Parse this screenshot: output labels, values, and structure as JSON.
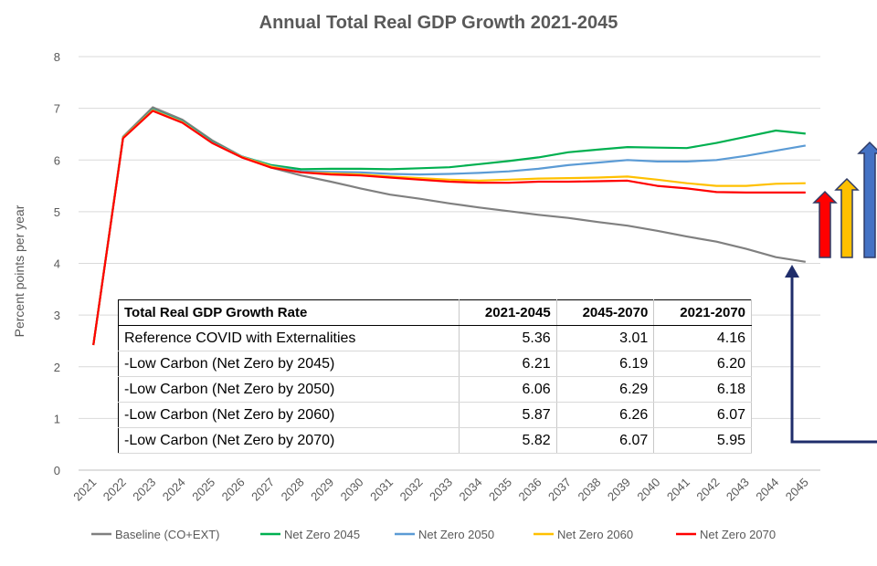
{
  "chart_data": {
    "type": "line",
    "title": "Annual Total Real GDP Growth 2021-2045",
    "ylabel": "Percent points per year",
    "xlabel": "",
    "ylim": [
      0,
      8
    ],
    "yticks": [
      0,
      1,
      2,
      3,
      4,
      5,
      6,
      7,
      8
    ],
    "grid": true,
    "legend_position": "bottom",
    "x": [
      "2021",
      "2022",
      "2023",
      "2024",
      "2025",
      "2026",
      "2027",
      "2028",
      "2029",
      "2030",
      "2031",
      "2032",
      "2033",
      "2034",
      "2035",
      "2036",
      "2037",
      "2038",
      "2039",
      "2040",
      "2041",
      "2042",
      "2043",
      "2044",
      "2045"
    ],
    "series": [
      {
        "name": "Baseline (CO+EXT)",
        "color": "#808080",
        "values": [
          2.42,
          6.45,
          7.02,
          6.78,
          6.38,
          6.07,
          5.85,
          5.7,
          5.58,
          5.45,
          5.33,
          5.25,
          5.16,
          5.08,
          5.01,
          4.94,
          4.88,
          4.8,
          4.73,
          4.63,
          4.52,
          4.42,
          4.28,
          4.12,
          4.03
        ]
      },
      {
        "name": "Net Zero 2045",
        "color": "#00B050",
        "values": [
          2.42,
          6.43,
          6.98,
          6.75,
          6.35,
          6.07,
          5.9,
          5.82,
          5.83,
          5.83,
          5.82,
          5.84,
          5.86,
          5.92,
          5.98,
          6.05,
          6.15,
          6.2,
          6.25,
          6.24,
          6.23,
          6.33,
          6.45,
          6.57,
          6.51
        ]
      },
      {
        "name": "Net Zero 2050",
        "color": "#5B9BD5",
        "values": [
          2.42,
          6.43,
          6.97,
          6.74,
          6.34,
          6.07,
          5.88,
          5.78,
          5.77,
          5.76,
          5.73,
          5.72,
          5.73,
          5.75,
          5.78,
          5.83,
          5.9,
          5.95,
          6.0,
          5.97,
          5.97,
          6.0,
          6.08,
          6.18,
          6.28
        ]
      },
      {
        "name": "Net Zero 2060",
        "color": "#FFC000",
        "values": [
          2.42,
          6.43,
          6.96,
          6.73,
          6.33,
          6.06,
          5.87,
          5.76,
          5.74,
          5.72,
          5.68,
          5.65,
          5.62,
          5.6,
          5.62,
          5.64,
          5.65,
          5.66,
          5.68,
          5.62,
          5.55,
          5.5,
          5.5,
          5.54,
          5.55
        ]
      },
      {
        "name": "Net Zero 2070",
        "color": "#FF0000",
        "values": [
          2.42,
          6.42,
          6.95,
          6.72,
          6.33,
          6.05,
          5.85,
          5.76,
          5.72,
          5.7,
          5.66,
          5.62,
          5.58,
          5.56,
          5.56,
          5.58,
          5.58,
          5.59,
          5.6,
          5.5,
          5.45,
          5.38,
          5.37,
          5.37,
          5.37
        ]
      }
    ]
  },
  "table": {
    "headers": [
      "Total Real GDP Growth Rate",
      "2021-2045",
      "2045-2070",
      "2021-2070"
    ],
    "rows": [
      [
        "Reference COVID with Externalities",
        "5.36",
        "3.01",
        "4.16"
      ],
      [
        " -Low Carbon (Net Zero by 2045)",
        "6.21",
        "6.19",
        "6.20"
      ],
      [
        " -Low Carbon (Net Zero by 2050)",
        "6.06",
        "6.29",
        "6.18"
      ],
      [
        " -Low Carbon (Net Zero by 2060)",
        "5.87",
        "6.26",
        "6.07"
      ],
      [
        " -Low Carbon (Net Zero by 2070)",
        "5.82",
        "6.07",
        "5.95"
      ]
    ]
  },
  "annotations": {
    "arrow_colors": [
      "#FF0000",
      "#FFC000",
      "#4472C4"
    ],
    "outline_color": "#2F3B66",
    "connector_color": "#1F2D6B"
  }
}
